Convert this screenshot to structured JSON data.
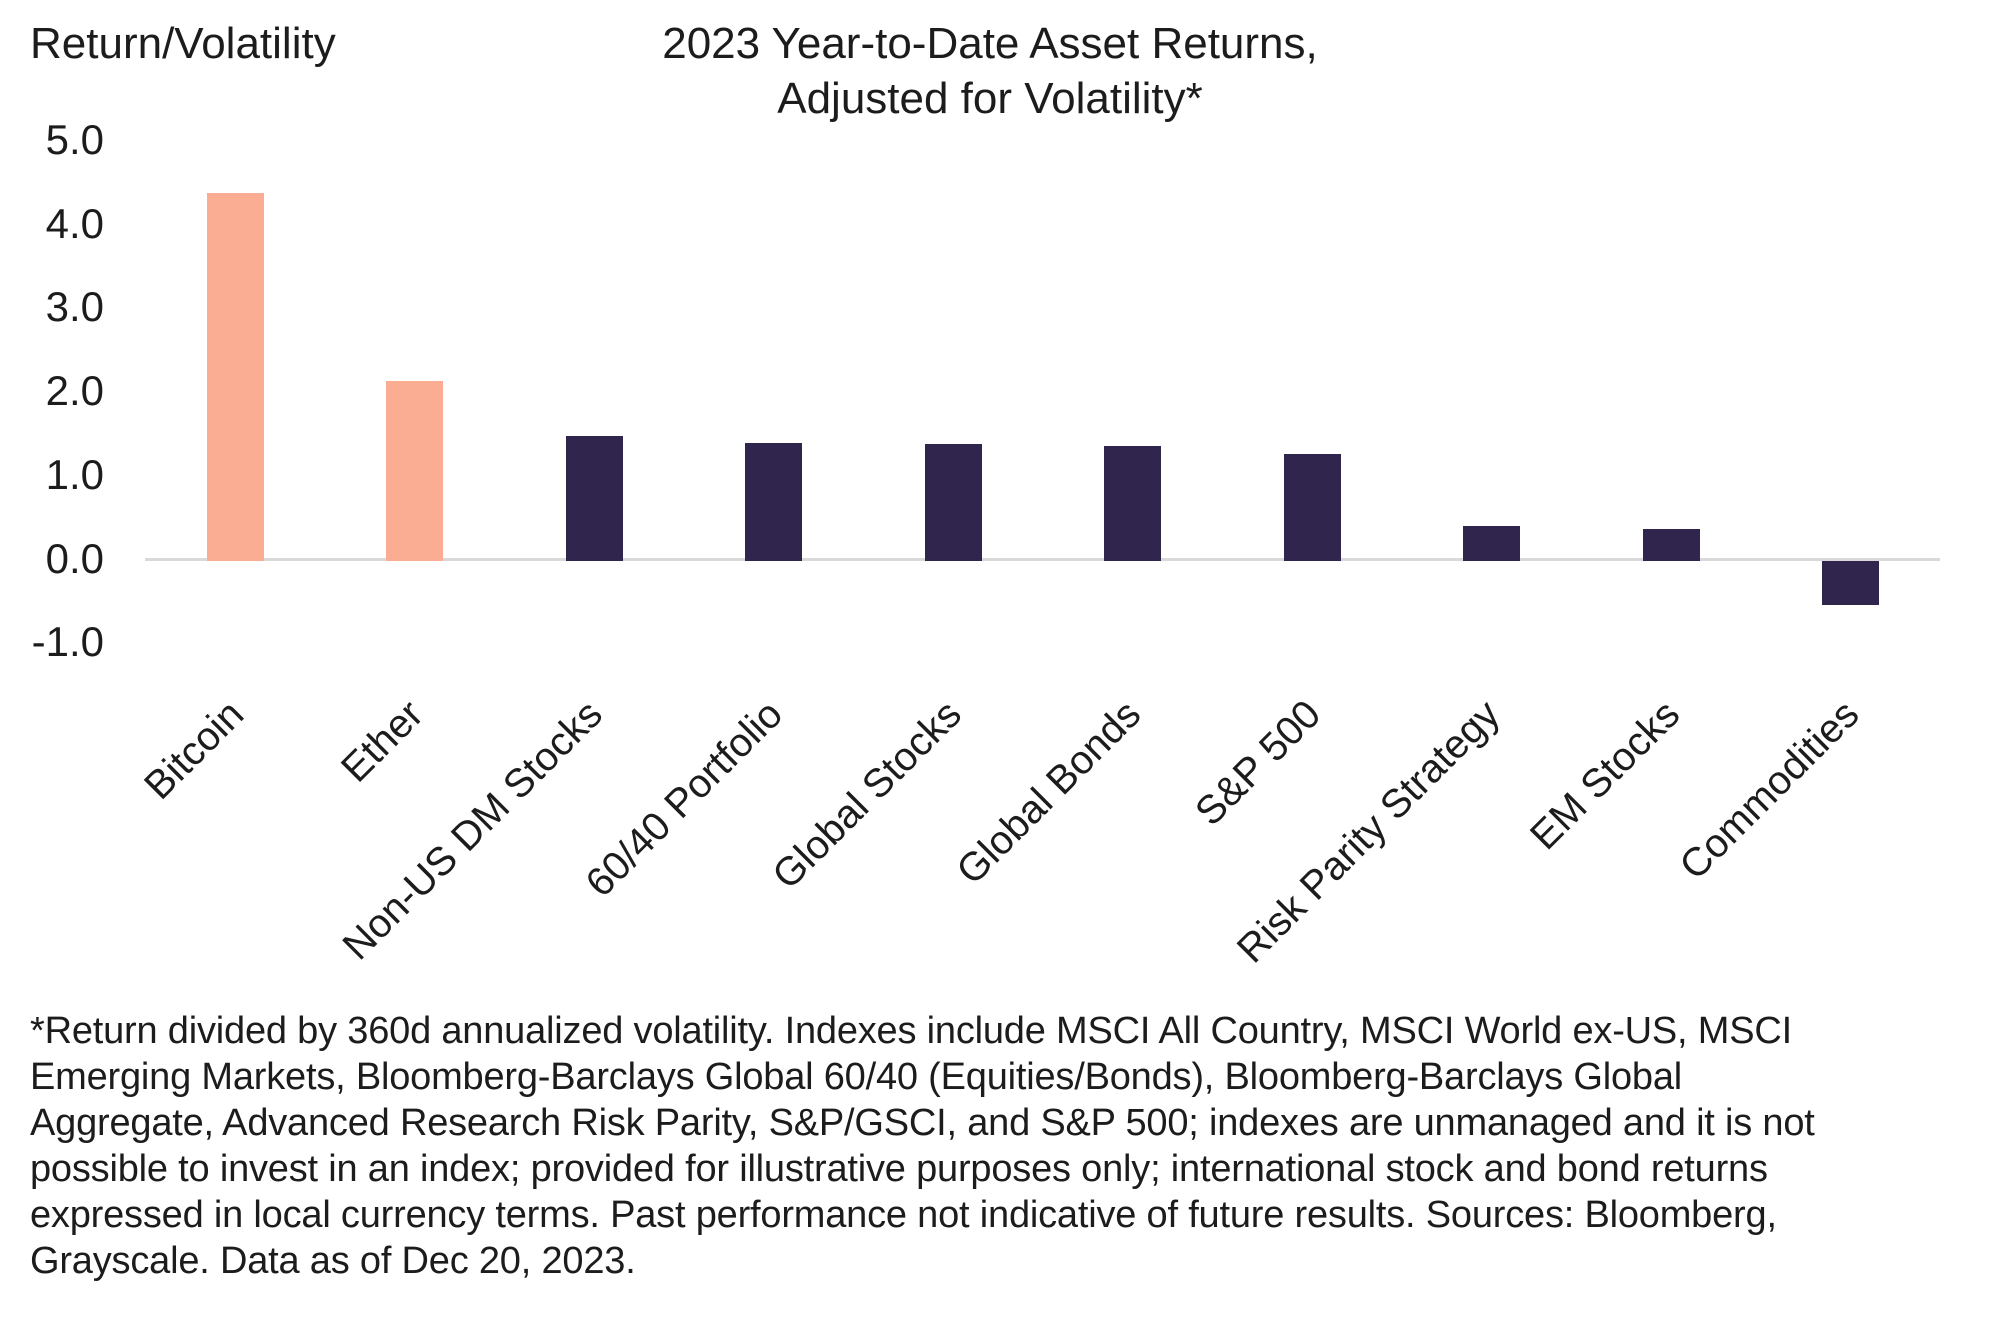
{
  "y_axis_title": "Return/Volatility",
  "title": {
    "line1": "2023 Year-to-Date Asset Returns,",
    "line2": "Adjusted for Volatility*"
  },
  "chart_data": {
    "type": "bar",
    "title": "2023 Year-to-Date Asset Returns, Adjusted for Volatility*",
    "ylabel": "Return/Volatility",
    "xlabel": "",
    "ylim": [
      -1.0,
      5.0
    ],
    "ytick_labels": [
      "5.0",
      "4.0",
      "3.0",
      "2.0",
      "1.0",
      "0.0",
      "-1.0"
    ],
    "grid": false,
    "legend_position": "none",
    "categories": [
      "Bitcoin",
      "Ether",
      "Non-US DM Stocks",
      "60/40 Portfolio",
      "Global Stocks",
      "Global Bonds",
      "S&P 500",
      "Risk Parity Strategy",
      "EM Stocks",
      "Commodities"
    ],
    "values": [
      4.37,
      2.12,
      1.46,
      1.38,
      1.37,
      1.34,
      1.25,
      0.39,
      0.35,
      -0.52
    ],
    "bar_colors": [
      "#FBAD93",
      "#FBAD93",
      "#2F254D",
      "#2F254D",
      "#2F254D",
      "#2F254D",
      "#2F254D",
      "#2F254D",
      "#2F254D",
      "#2F254D"
    ],
    "colors": {
      "crypto_highlight": "#FBAD93",
      "traditional": "#2F254D",
      "axis_line": "#D9D9D9",
      "text": "#1C1C1C"
    }
  },
  "footnote": {
    "lines": [
      "*Return divided by 360d annualized volatility. Indexes include MSCI All Country, MSCI World ex-US, MSCI",
      "Emerging Markets, Bloomberg-Barclays Global 60/40 (Equities/Bonds), Bloomberg-Barclays Global",
      "Aggregate, Advanced Research Risk Parity, S&P/GSCI, and S&P 500; indexes are unmanaged and it is not",
      "possible to invest in an index; provided for illustrative purposes only; international stock and bond returns",
      "expressed in local currency terms. Past performance not indicative of future results. Sources: Bloomberg,",
      "Grayscale. Data as of Dec 20, 2023."
    ]
  }
}
